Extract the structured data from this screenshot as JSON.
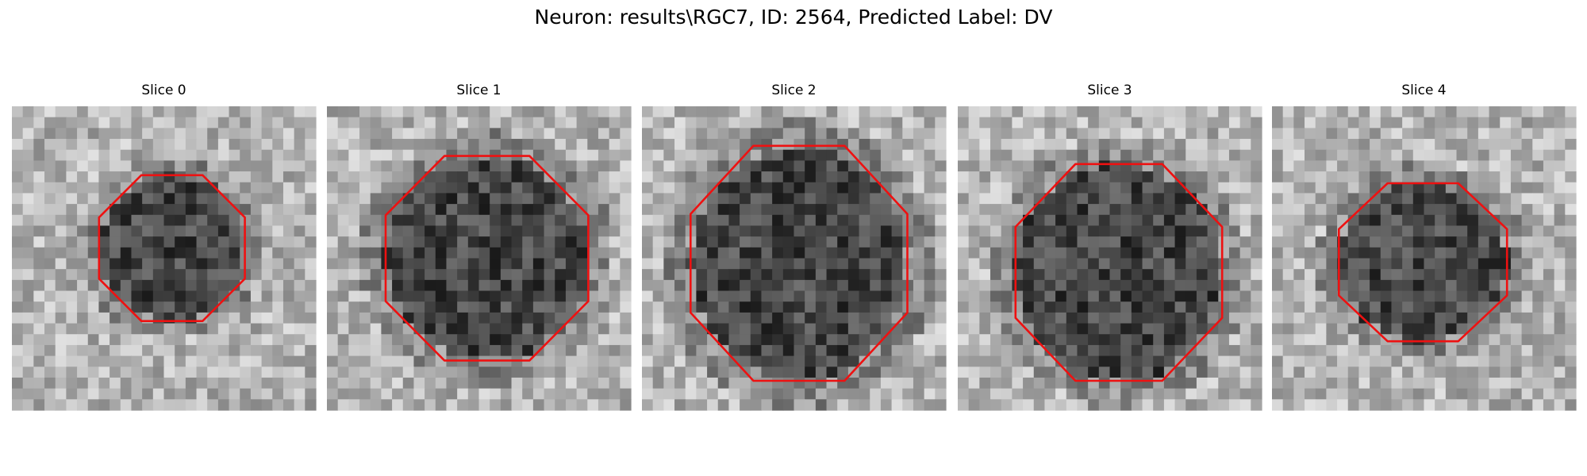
{
  "header": {
    "title": "Neuron: results\\RGC7, ID: 2564, Predicted Label: DV"
  },
  "panels": [
    {
      "title": "Slice 0"
    },
    {
      "title": "Slice 1"
    },
    {
      "title": "Slice 2"
    },
    {
      "title": "Slice 3"
    },
    {
      "title": "Slice 4"
    }
  ]
}
